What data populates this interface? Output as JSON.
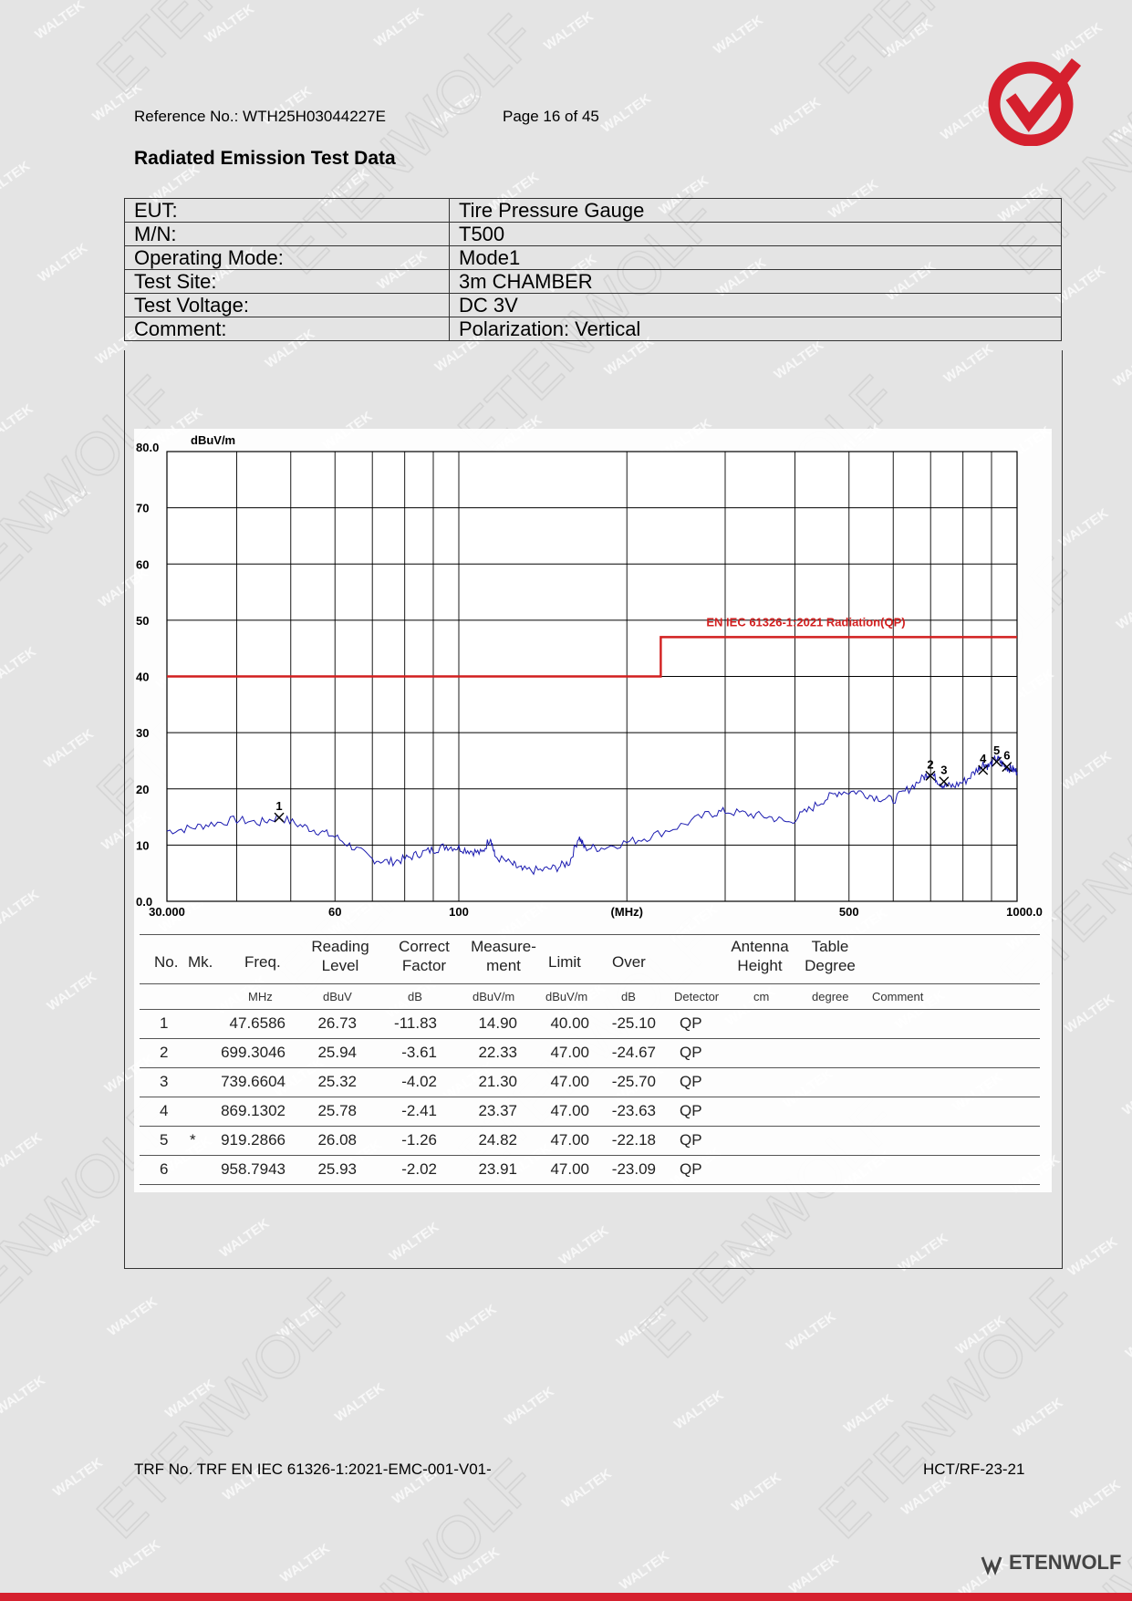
{
  "header": {
    "reference": "Reference No.: WTH25H03044227E",
    "page": "Page 16 of 45"
  },
  "title": "Radiated Emission Test Data",
  "info_rows": [
    {
      "key": "EUT:",
      "value": "Tire Pressure Gauge"
    },
    {
      "key": "M/N:",
      "value": "T500"
    },
    {
      "key": "Operating Mode:",
      "value": "Mode1"
    },
    {
      "key": "Test Site:",
      "value": "3m CHAMBER"
    },
    {
      "key": "Test Voltage:",
      "value": "DC 3V"
    },
    {
      "key": "Comment:",
      "value": "Polarization: Vertical"
    }
  ],
  "chart_data": {
    "type": "line",
    "ylabel": "dBuV/m",
    "xlabel": "(MHz)",
    "xscale": "log",
    "xlim": [
      30,
      1000
    ],
    "ylim": [
      0,
      80
    ],
    "y_ticks": [
      "80.0",
      "70",
      "60",
      "50",
      "40",
      "30",
      "20",
      "10",
      "0.0"
    ],
    "x_tick_labels": [
      {
        "x": 30,
        "label": "30.000"
      },
      {
        "x": 60,
        "label": "60"
      },
      {
        "x": 100,
        "label": "100"
      },
      {
        "x": 500,
        "label": "500"
      },
      {
        "x": 1000,
        "label": "1000.0"
      }
    ],
    "x_unit_label": {
      "x": 200,
      "label": "(MHz)"
    },
    "grid": true,
    "limit_line": {
      "name": "EN IEC 61326-1:2021 Radiation(QP)",
      "color": "#d21f1f",
      "points": [
        [
          30,
          40
        ],
        [
          230,
          40
        ],
        [
          230,
          47
        ],
        [
          1000,
          47
        ]
      ]
    },
    "trace": {
      "color": "#1a1ab0",
      "points": [
        [
          30,
          12.5
        ],
        [
          33,
          13
        ],
        [
          36,
          13.8
        ],
        [
          40,
          14.5
        ],
        [
          44,
          14
        ],
        [
          47.66,
          15
        ],
        [
          52,
          13.5
        ],
        [
          56,
          12.5
        ],
        [
          60,
          11.5
        ],
        [
          65,
          9.5
        ],
        [
          70,
          7.5
        ],
        [
          75,
          7
        ],
        [
          80,
          7.5
        ],
        [
          85,
          8.5
        ],
        [
          90,
          9.2
        ],
        [
          95,
          9.8
        ],
        [
          100,
          9.5
        ],
        [
          105,
          9
        ],
        [
          110,
          8.5
        ],
        [
          114,
          11.5
        ],
        [
          116,
          8
        ],
        [
          125,
          6.5
        ],
        [
          130,
          5.5
        ],
        [
          140,
          5.5
        ],
        [
          150,
          6
        ],
        [
          158,
          7
        ],
        [
          164,
          11.5
        ],
        [
          168,
          9.5
        ],
        [
          180,
          9.5
        ],
        [
          200,
          10.5
        ],
        [
          220,
          11.5
        ],
        [
          250,
          13.5
        ],
        [
          280,
          15.5
        ],
        [
          300,
          16
        ],
        [
          330,
          15.5
        ],
        [
          360,
          15
        ],
        [
          390,
          14
        ],
        [
          420,
          16
        ],
        [
          450,
          18
        ],
        [
          480,
          19.5
        ],
        [
          520,
          19.5
        ],
        [
          560,
          18.5
        ],
        [
          600,
          18
        ],
        [
          640,
          20
        ],
        [
          680,
          22
        ],
        [
          699.3,
          23
        ],
        [
          720,
          21.5
        ],
        [
          739.7,
          20.5
        ],
        [
          770,
          20.5
        ],
        [
          810,
          21.5
        ],
        [
          850,
          23.5
        ],
        [
          869.1,
          24.5
        ],
        [
          890,
          24
        ],
        [
          919.3,
          25.5
        ],
        [
          940,
          24.5
        ],
        [
          958.8,
          23.8
        ],
        [
          980,
          23.5
        ],
        [
          1000,
          23
        ]
      ]
    },
    "markers": [
      {
        "label": "1",
        "x": 47.6586,
        "y": 14.9
      },
      {
        "label": "2",
        "x": 699.3046,
        "y": 22.33
      },
      {
        "label": "3",
        "x": 739.6604,
        "y": 21.3
      },
      {
        "label": "4",
        "x": 869.1302,
        "y": 23.37
      },
      {
        "label": "5",
        "x": 919.2866,
        "y": 24.82
      },
      {
        "label": "6",
        "x": 958.7943,
        "y": 23.91
      }
    ]
  },
  "results": {
    "headers": {
      "no": "No.",
      "mk": "Mk.",
      "freq": "Freq.",
      "reading_1": "Reading",
      "reading_2": "Level",
      "correct_1": "Correct",
      "correct_2": "Factor",
      "measure_1": "Measure-",
      "measure_2": "ment",
      "limit": "Limit",
      "over": "Over",
      "antenna_1": "Antenna",
      "antenna_2": "Height",
      "table_1": "Table",
      "table_2": "Degree"
    },
    "units": {
      "freq": "MHz",
      "reading": "dBuV",
      "correct": "dB",
      "measure": "dBuV/m",
      "limit": "dBuV/m",
      "over": "dB",
      "detector": "Detector",
      "height": "cm",
      "degree": "degree",
      "comment": "Comment"
    },
    "rows": [
      {
        "no": "1",
        "mk": "",
        "freq": "47.6586",
        "reading": "26.73",
        "correct": "-11.83",
        "measure": "14.90",
        "limit": "40.00",
        "over": "-25.10",
        "detector": "QP"
      },
      {
        "no": "2",
        "mk": "",
        "freq": "699.3046",
        "reading": "25.94",
        "correct": "-3.61",
        "measure": "22.33",
        "limit": "47.00",
        "over": "-24.67",
        "detector": "QP"
      },
      {
        "no": "3",
        "mk": "",
        "freq": "739.6604",
        "reading": "25.32",
        "correct": "-4.02",
        "measure": "21.30",
        "limit": "47.00",
        "over": "-25.70",
        "detector": "QP"
      },
      {
        "no": "4",
        "mk": "",
        "freq": "869.1302",
        "reading": "25.78",
        "correct": "-2.41",
        "measure": "23.37",
        "limit": "47.00",
        "over": "-23.63",
        "detector": "QP"
      },
      {
        "no": "5",
        "mk": "*",
        "freq": "919.2866",
        "reading": "26.08",
        "correct": "-1.26",
        "measure": "24.82",
        "limit": "47.00",
        "over": "-22.18",
        "detector": "QP"
      },
      {
        "no": "6",
        "mk": "",
        "freq": "958.7943",
        "reading": "25.93",
        "correct": "-2.02",
        "measure": "23.91",
        "limit": "47.00",
        "over": "-23.09",
        "detector": "QP"
      }
    ]
  },
  "footer": {
    "trf": "TRF No. TRF EN IEC 61326-1:2021-EMC-001-V01-",
    "code": "HCT/RF-23-21"
  },
  "branding": {
    "watermarks": [
      "WALTEK",
      "ETENWOLF"
    ],
    "brand_name": "ETENWOLF",
    "accent": "#d5202e",
    "logo_icon": "check-circle-logo"
  }
}
